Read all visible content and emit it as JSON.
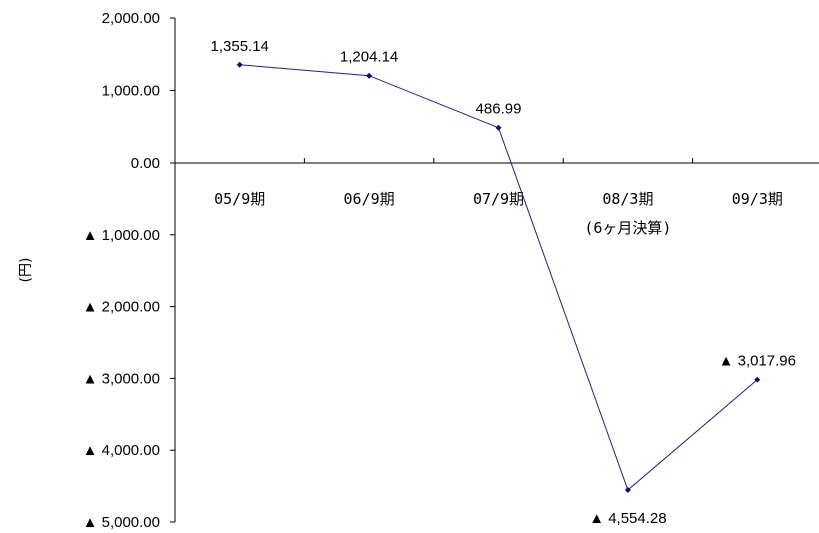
{
  "chart_data": {
    "type": "line",
    "categories": [
      "05/9期",
      "06/9期",
      "07/9期",
      "08/3期",
      "09/3期"
    ],
    "category_sublabels": [
      "",
      "",
      "",
      "(6ヶ月決算)",
      ""
    ],
    "values": [
      1355.14,
      1204.14,
      486.99,
      -4554.28,
      -3017.96
    ],
    "data_labels": [
      "1,355.14",
      "1,204.14",
      "486.99",
      "▲ 4,554.28",
      "▲ 3,017.96"
    ],
    "ylabel": "(円)",
    "ylim": [
      -5000,
      2000
    ],
    "yticks": [
      2000,
      1000,
      0,
      -1000,
      -2000,
      -3000,
      -4000,
      -5000
    ],
    "ytick_labels": [
      "2,000.00",
      "1,000.00",
      "0.00",
      "▲ 1,000.00",
      "▲ 2,000.00",
      "▲ 3,000.00",
      "▲ 4,000.00",
      "▲ 5,000.00"
    ],
    "grid": false,
    "line_color": "#1f1f8f",
    "marker_color": "#0a0a6e"
  }
}
